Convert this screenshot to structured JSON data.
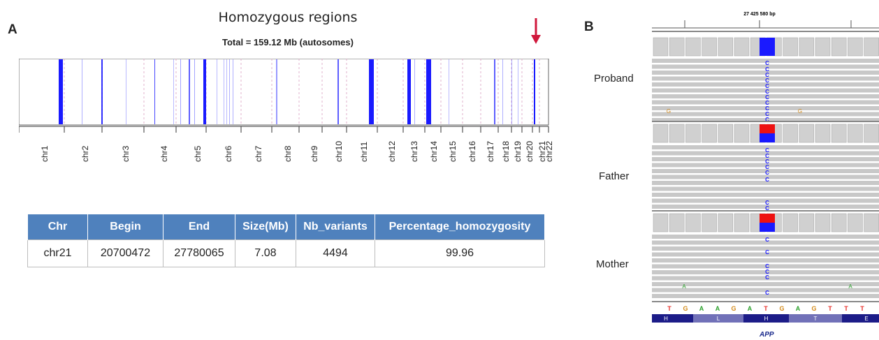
{
  "panel_a": {
    "letter": "A",
    "title": "Homozygous regions",
    "subtitle": "Total = 159.12 Mb (autosomes)",
    "arrow_color": "#d0183c",
    "region_color": "#1a1aff",
    "chromosomes": [
      "chr1",
      "chr2",
      "chr3",
      "chr4",
      "chr5",
      "chr6",
      "chr7",
      "chr8",
      "chr9",
      "chr10",
      "chr11",
      "chr12",
      "chr13",
      "chr14",
      "chr15",
      "chr16",
      "chr17",
      "chr18",
      "chr19",
      "chr20",
      "chr21",
      "chr22"
    ]
  },
  "table": {
    "headers": [
      "Chr",
      "Begin",
      "End",
      "Size(Mb)",
      "Nb_variants",
      "Percentage_homozygosity"
    ],
    "rows": [
      [
        "chr21",
        "20700472",
        "27780065",
        "7.08",
        "4494",
        "99.96"
      ]
    ]
  },
  "panel_b": {
    "letter": "B",
    "position_label": "27 425 580 bp",
    "samples": [
      "Proband",
      "Father",
      "Mother"
    ],
    "reference_bases": [
      "T",
      "G",
      "A",
      "A",
      "G",
      "A",
      "T",
      "G",
      "A",
      "G",
      "T",
      "T",
      "T"
    ],
    "amino_acids": [
      "H",
      "L",
      "H",
      "T",
      "E"
    ],
    "variant_base": "C",
    "mismatch_bases": [
      "G",
      "G",
      "A",
      "A"
    ],
    "gene": "APP",
    "colors": {
      "C": "#1a1aff",
      "T": "#e8302a",
      "G": "#d38a1a",
      "A": "#2aa02a",
      "ref_allele": "#ee1111"
    }
  }
}
